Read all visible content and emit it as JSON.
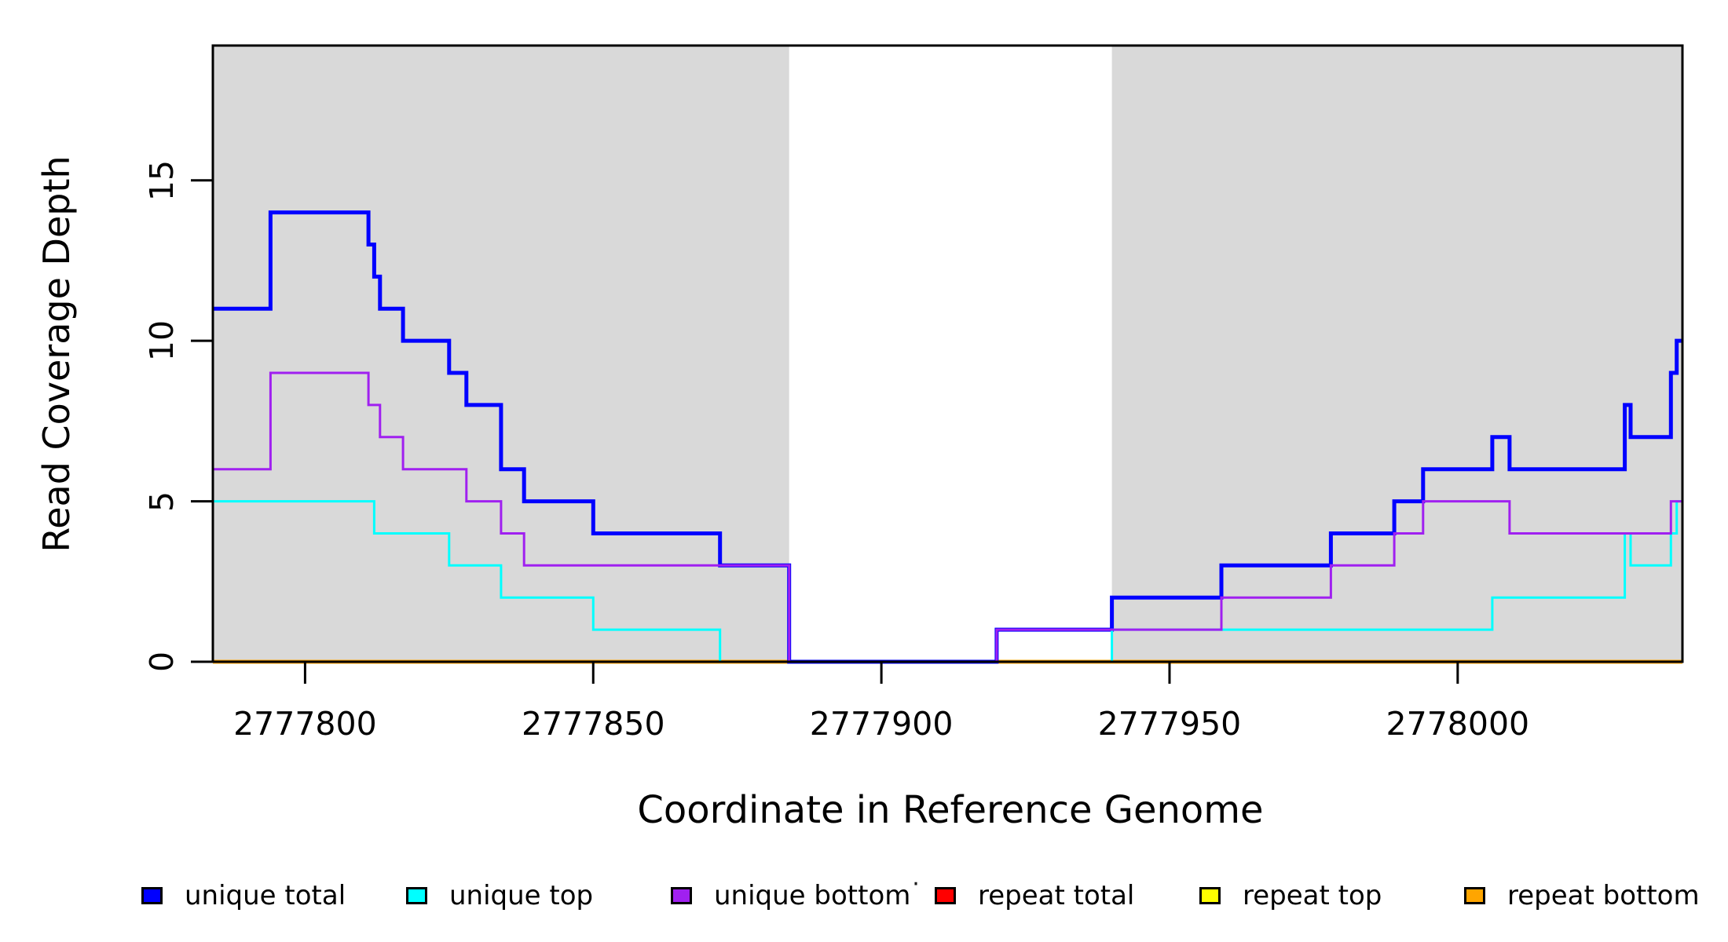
{
  "chart_data": {
    "type": "line",
    "subtype": "step",
    "title": "",
    "xlabel": "Coordinate in Reference Genome",
    "ylabel": "Read Coverage Depth",
    "xlim": [
      2777784,
      2778039
    ],
    "ylim": [
      0,
      19.2
    ],
    "x_ticks": [
      2777800,
      2777850,
      2777900,
      2777950,
      2778000
    ],
    "y_ticks": [
      0,
      5,
      10,
      15
    ],
    "grid": false,
    "legend_position": "bottom",
    "plot_bg": "#ffffff",
    "shaded_regions": [
      {
        "x0": 2777784,
        "x1": 2777884,
        "color": "#D9D9D9"
      },
      {
        "x0": 2777940,
        "x1": 2778039,
        "color": "#D9D9D9"
      }
    ],
    "series": [
      {
        "name": "unique total",
        "color": "#0000FF",
        "line_width": 5,
        "breakpoints": [
          [
            2777784,
            11
          ],
          [
            2777794,
            14
          ],
          [
            2777811,
            13
          ],
          [
            2777812,
            12
          ],
          [
            2777813,
            11
          ],
          [
            2777817,
            10
          ],
          [
            2777825,
            9
          ],
          [
            2777828,
            8
          ],
          [
            2777834,
            6
          ],
          [
            2777838,
            5
          ],
          [
            2777850,
            4
          ],
          [
            2777872,
            3
          ],
          [
            2777884,
            0
          ],
          [
            2777920,
            1
          ],
          [
            2777940,
            2
          ],
          [
            2777959,
            3
          ],
          [
            2777978,
            4
          ],
          [
            2777989,
            5
          ],
          [
            2777994,
            6
          ],
          [
            2778006,
            7
          ],
          [
            2778009,
            6
          ],
          [
            2778029,
            8
          ],
          [
            2778030,
            7
          ],
          [
            2778037,
            9
          ],
          [
            2778038,
            10
          ],
          [
            2778039,
            10
          ]
        ]
      },
      {
        "name": "unique top",
        "color": "#00FFFF",
        "line_width": 3,
        "breakpoints": [
          [
            2777784,
            5
          ],
          [
            2777812,
            4
          ],
          [
            2777825,
            3
          ],
          [
            2777834,
            2
          ],
          [
            2777850,
            1
          ],
          [
            2777872,
            0
          ],
          [
            2777940,
            1
          ],
          [
            2778006,
            2
          ],
          [
            2778029,
            4
          ],
          [
            2778030,
            3
          ],
          [
            2778037,
            4
          ],
          [
            2778038,
            5
          ],
          [
            2778039,
            5
          ]
        ]
      },
      {
        "name": "unique bottom",
        "color": "#A020F0",
        "line_width": 3,
        "breakpoints": [
          [
            2777784,
            6
          ],
          [
            2777794,
            9
          ],
          [
            2777811,
            8
          ],
          [
            2777813,
            7
          ],
          [
            2777817,
            6
          ],
          [
            2777828,
            5
          ],
          [
            2777834,
            4
          ],
          [
            2777838,
            3
          ],
          [
            2777884,
            0
          ],
          [
            2777920,
            1
          ],
          [
            2777959,
            2
          ],
          [
            2777978,
            3
          ],
          [
            2777989,
            4
          ],
          [
            2777994,
            5
          ],
          [
            2778009,
            4
          ],
          [
            2778037,
            5
          ],
          [
            2778039,
            5
          ]
        ]
      },
      {
        "name": "repeat total",
        "color": "#FF0000",
        "line_width": 4,
        "breakpoints": [
          [
            2777784,
            0
          ],
          [
            2778039,
            0
          ]
        ]
      },
      {
        "name": "repeat top",
        "color": "#FFFF00",
        "line_width": 4,
        "breakpoints": [
          [
            2777784,
            0
          ],
          [
            2778039,
            0
          ]
        ]
      },
      {
        "name": "repeat bottom",
        "color": "#FFA500",
        "line_width": 5,
        "breakpoints": [
          [
            2777784,
            0
          ],
          [
            2778039,
            0
          ]
        ]
      }
    ]
  },
  "legend": {
    "items": [
      {
        "label": "unique total",
        "color": "#0000FF"
      },
      {
        "label": "unique top",
        "color": "#00FFFF"
      },
      {
        "label": "unique bottom",
        "color": "#A020F0"
      },
      {
        "label": "repeat total",
        "color": "#FF0000"
      },
      {
        "label": "repeat top",
        "color": "#FFFF00"
      },
      {
        "label": "repeat bottom",
        "color": "#FFA500"
      }
    ],
    "stray_dot": "."
  }
}
